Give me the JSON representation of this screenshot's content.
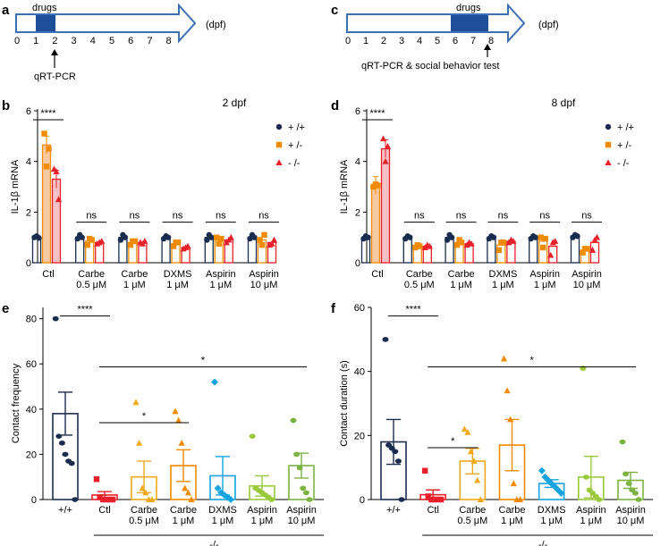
{
  "panels": {
    "a": {
      "letter": "a",
      "unit": "(dpf)",
      "drug_label": "drugs",
      "days": [
        "0",
        "1",
        "2",
        "3",
        "4",
        "5",
        "6",
        "7",
        "8"
      ],
      "arrow_label": "qRT-PCR"
    },
    "b": {
      "letter": "b"
    },
    "c": {
      "letter": "c",
      "unit": "(dpf)",
      "drug_label": "drugs",
      "days": [
        "0",
        "1",
        "2",
        "3",
        "4",
        "5",
        "6",
        "7",
        "8"
      ],
      "arrow_label": "qRT-PCR & social behavior test"
    },
    "d": {
      "letter": "d"
    },
    "e": {
      "letter": "e"
    },
    "f": {
      "letter": "f"
    }
  },
  "legend": {
    "labels": [
      "+ /+",
      "+ /-",
      "- /-"
    ]
  },
  "colors": {
    "wt": "#1b2d4f",
    "het": "#f08a00",
    "hom": "#e8202a",
    "timeline_stroke": "#3d6fb3",
    "drug_block": "#1f4e99",
    "ctl_het_fill": "#f6c9a1",
    "ctl_hom_fill": "#f4c2c6"
  },
  "chart_data": [
    {
      "panel": "b",
      "type": "bar",
      "title": "2 dpf",
      "ylabel": "IL-1β  mRNA",
      "ylim": [
        0,
        6
      ],
      "yticks": [
        "0",
        "2",
        "4",
        "6"
      ],
      "categories": [
        "Ctl",
        "Carbe\n0.5 μM",
        "Carbe\n1 μM",
        "DXMS\n1 μM",
        "Aspirin\n1 μM",
        "Aspirin\n10 μM"
      ],
      "series": [
        {
          "name": "+ /+",
          "values": [
            1.0,
            1.0,
            1.0,
            1.0,
            1.0,
            1.0
          ],
          "points": [
            [
              1.0,
              1.05,
              0.98
            ],
            [
              0.95,
              1.1,
              1.0
            ],
            [
              0.9,
              1.1,
              1.0
            ],
            [
              0.95,
              1.05,
              1.0
            ],
            [
              0.9,
              1.1,
              1.0
            ],
            [
              0.95,
              1.1,
              1.0
            ]
          ]
        },
        {
          "name": "+ /-",
          "values": [
            4.65,
            0.85,
            0.8,
            0.75,
            0.9,
            0.9
          ],
          "points": [
            [
              5.1,
              3.8,
              4.5
            ],
            [
              0.7,
              0.95,
              0.9
            ],
            [
              0.7,
              0.85,
              0.85
            ],
            [
              0.65,
              0.8,
              0.8
            ],
            [
              1.0,
              0.75,
              0.95
            ],
            [
              0.9,
              0.7,
              1.1
            ]
          ]
        },
        {
          "name": "- /-",
          "values": [
            3.3,
            0.8,
            0.8,
            0.6,
            0.9,
            0.8
          ],
          "points": [
            [
              3.7,
              3.6,
              2.5
            ],
            [
              0.75,
              0.8,
              0.85
            ],
            [
              0.8,
              0.75,
              0.85
            ],
            [
              0.55,
              0.6,
              0.65
            ],
            [
              0.8,
              0.9,
              1.0
            ],
            [
              0.7,
              0.75,
              0.9
            ]
          ]
        }
      ],
      "significance": [
        {
          "label": "****",
          "cat": 0
        },
        {
          "label": "ns",
          "cat": 1
        },
        {
          "label": "ns",
          "cat": 2
        },
        {
          "label": "ns",
          "cat": 3
        },
        {
          "label": "ns",
          "cat": 4
        },
        {
          "label": "ns",
          "cat": 5
        }
      ]
    },
    {
      "panel": "d",
      "type": "bar",
      "title": "8 dpf",
      "ylabel": "IL-1β  mRNA",
      "ylim": [
        0,
        6
      ],
      "yticks": [
        "0",
        "2",
        "4",
        "6"
      ],
      "categories": [
        "Ctl",
        "Carbe\n0.5 μM",
        "Carbe\n1 μM",
        "DXMS\n1 μM",
        "Aspirin\n1 μM",
        "Aspirin\n10 μM"
      ],
      "series": [
        {
          "name": "+ /+",
          "values": [
            1.0,
            1.0,
            1.0,
            1.0,
            1.0,
            1.05
          ],
          "points": [
            [
              0.95,
              1.05,
              1.0
            ],
            [
              0.95,
              1.05,
              1.0
            ],
            [
              0.9,
              1.1,
              1.0
            ],
            [
              0.95,
              1.05,
              1.0
            ],
            [
              0.95,
              1.05,
              1.0
            ],
            [
              1.0,
              1.1,
              1.05
            ]
          ]
        },
        {
          "name": "+ /-",
          "values": [
            3.05,
            0.65,
            0.8,
            0.7,
            0.85,
            0.5
          ],
          "points": [
            [
              3.0,
              3.1,
              3.05
            ],
            [
              0.6,
              0.7,
              0.65
            ],
            [
              0.7,
              0.9,
              0.8
            ],
            [
              0.5,
              0.8,
              0.8
            ],
            [
              1.0,
              0.6,
              0.95
            ],
            [
              0.4,
              0.55,
              0.55
            ]
          ]
        },
        {
          "name": "- /-",
          "values": [
            4.5,
            0.65,
            0.75,
            0.85,
            0.65,
            0.8
          ],
          "points": [
            [
              4.9,
              4.0,
              4.6
            ],
            [
              0.6,
              0.7,
              0.65
            ],
            [
              0.7,
              0.8,
              0.75
            ],
            [
              0.8,
              0.9,
              0.85
            ],
            [
              0.3,
              0.8,
              0.85
            ],
            [
              0.5,
              0.9,
              1.0
            ]
          ]
        }
      ],
      "significance": [
        {
          "label": "****",
          "cat": 0
        },
        {
          "label": "ns",
          "cat": 1
        },
        {
          "label": "ns",
          "cat": 2
        },
        {
          "label": "ns",
          "cat": 3
        },
        {
          "label": "ns",
          "cat": 4
        },
        {
          "label": "ns",
          "cat": 5
        }
      ]
    },
    {
      "panel": "e",
      "type": "bar",
      "ylabel": "Contact frequency",
      "ylim": [
        0,
        85
      ],
      "yticks": [
        "0",
        "20",
        "40",
        "60",
        "80"
      ],
      "categories": [
        "+/+",
        "Ctl",
        "Carbe\n0.5 μM",
        "Carbe\n1 μM",
        "DXMS\n1 μM",
        "Aspirin\n1 μM",
        "Aspirin\n10 μM"
      ],
      "group_label": "-/-",
      "series": [
        {
          "name": "value",
          "values": [
            38,
            2,
            10,
            15,
            10.5,
            6,
            15
          ],
          "errors": [
            9.5,
            1.5,
            7,
            7,
            8.5,
            4.5,
            5.5
          ],
          "points": [
            [
              80,
              28,
              25,
              20,
              17,
              16,
              0
            ],
            [
              9,
              1,
              0,
              0,
              0,
              0
            ],
            [
              43,
              25,
              5,
              3,
              0,
              0
            ],
            [
              39,
              35,
              25,
              5,
              3,
              0
            ],
            [
              52,
              5,
              3,
              2,
              1,
              0
            ],
            [
              28,
              5,
              4,
              3,
              2,
              1,
              0
            ],
            [
              35,
              20,
              14,
              5,
              3,
              0
            ]
          ]
        }
      ],
      "colors": [
        "#1b2d4f",
        "#e8202a",
        "#f0a91a",
        "#f08a00",
        "#16a3e0",
        "#9aca3c",
        "#7cb342"
      ],
      "significance": [
        {
          "label": "****",
          "from": 0,
          "to": 1
        },
        {
          "label": "*",
          "from": 1,
          "to": 3
        },
        {
          "label": "*",
          "from": 1,
          "to": 6
        }
      ]
    },
    {
      "panel": "f",
      "type": "bar",
      "ylabel": "Contact duration (s)",
      "ylim": [
        0,
        60
      ],
      "yticks": [
        "0",
        "20",
        "40",
        "60"
      ],
      "categories": [
        "+/+",
        "Ctl",
        "Carbe\n0.5 μM",
        "Carbe\n1 μM",
        "DXMS\n1 μM",
        "Aspirin\n1 μM",
        "Aspirin\n10 μM"
      ],
      "group_label": "-/-",
      "series": [
        {
          "name": "value",
          "values": [
            18,
            1.5,
            12,
            17,
            5,
            7,
            6
          ],
          "errors": [
            7,
            1.5,
            4,
            8,
            1.2,
            6.5,
            2.5
          ],
          "points": [
            [
              50,
              17,
              16,
              15,
              12,
              0
            ],
            [
              9,
              1,
              0,
              0,
              0,
              0
            ],
            [
              22,
              21,
              15,
              12,
              6,
              0
            ],
            [
              44,
              34,
              25,
              5,
              0,
              0
            ],
            [
              9,
              7,
              6,
              5,
              4,
              3,
              2
            ],
            [
              41,
              7,
              3,
              2,
              1,
              0
            ],
            [
              18,
              8,
              5,
              3,
              2,
              0
            ]
          ]
        }
      ],
      "colors": [
        "#1b2d4f",
        "#e8202a",
        "#f0a91a",
        "#f08a00",
        "#16a3e0",
        "#9aca3c",
        "#7cb342"
      ],
      "significance": [
        {
          "label": "****",
          "from": 0,
          "to": 1
        },
        {
          "label": "*",
          "from": 1,
          "to": 2
        },
        {
          "label": "*",
          "from": 1,
          "to": 6
        }
      ]
    }
  ]
}
